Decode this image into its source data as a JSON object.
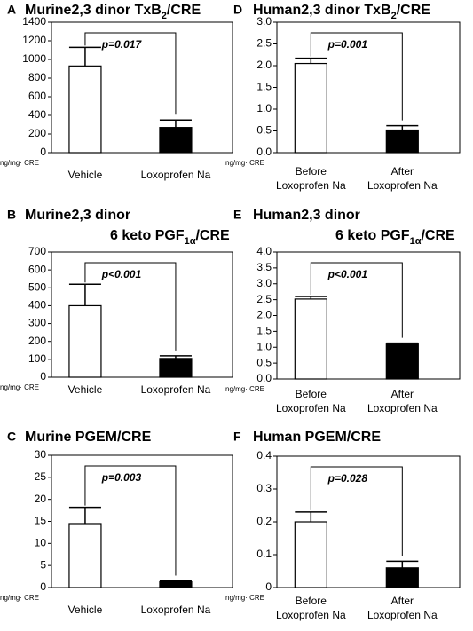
{
  "chart_data": [
    {
      "type": "bar",
      "panel": "A",
      "title": [
        [
          {
            "text": "Murine2,3 dinor TxB"
          },
          {
            "text": "2",
            "subscript": true
          },
          {
            "text": "/CRE"
          }
        ]
      ],
      "y_label": "ng/mg· CRE",
      "categories": [
        "Vehicle",
        "Loxoprofen Na"
      ],
      "values": [
        930,
        270
      ],
      "errors": [
        200,
        80
      ],
      "colors": [
        "#ffffff",
        "#000000"
      ],
      "annotation": "p=0.017",
      "ylim": [
        0,
        1400
      ],
      "yticks": [
        0,
        200,
        400,
        600,
        800,
        1000,
        1200,
        1400
      ]
    },
    {
      "type": "bar",
      "panel": "B",
      "title": [
        [
          {
            "text": "Murine2,3 dinor"
          }
        ],
        [
          {
            "text": "6 keto PGF"
          },
          {
            "text": "1α",
            "subscript": true
          },
          {
            "text": "/CRE"
          }
        ]
      ],
      "y_label": "ng/mg· CRE",
      "categories": [
        "Vehicle",
        "Loxoprofen Na"
      ],
      "values": [
        400,
        105
      ],
      "errors": [
        120,
        15
      ],
      "colors": [
        "#ffffff",
        "#000000"
      ],
      "annotation": "p<0.001",
      "ylim": [
        0,
        700
      ],
      "yticks": [
        0,
        100,
        200,
        300,
        400,
        500,
        600,
        700
      ]
    },
    {
      "type": "bar",
      "panel": "C",
      "title": [
        [
          {
            "text": "Murine PGEM/CRE"
          }
        ]
      ],
      "y_label": "ng/mg· CRE",
      "categories": [
        "Vehicle",
        "Loxoprofen Na"
      ],
      "values": [
        14.5,
        1.3
      ],
      "errors": [
        3.7,
        0.2
      ],
      "colors": [
        "#ffffff",
        "#000000"
      ],
      "annotation": "p=0.003",
      "ylim": [
        0,
        30
      ],
      "yticks": [
        0,
        5,
        10,
        15,
        20,
        25,
        30
      ]
    },
    {
      "type": "bar",
      "panel": "D",
      "title": [
        [
          {
            "text": "Human2,3 dinor TxB"
          },
          {
            "text": "2",
            "subscript": true
          },
          {
            "text": "/CRE"
          }
        ]
      ],
      "y_label": "ng/mg· CRE",
      "categories": [
        [
          "Before",
          "Loxoprofen Na"
        ],
        [
          "After",
          "Loxoprofen Na"
        ]
      ],
      "values": [
        2.05,
        0.52
      ],
      "errors": [
        0.12,
        0.1
      ],
      "colors": [
        "#ffffff",
        "#000000"
      ],
      "annotation": "p=0.001",
      "ylim": [
        0,
        3
      ],
      "yticks": [
        {
          "value": 0,
          "label": "0.0"
        },
        0.5,
        {
          "value": 1,
          "label": "1.0"
        },
        1.5,
        {
          "value": 2,
          "label": "2.0"
        },
        2.5,
        {
          "value": 3,
          "label": "3.0"
        }
      ]
    },
    {
      "type": "bar",
      "panel": "E",
      "title": [
        [
          {
            "text": "Human2,3 dinor"
          }
        ],
        [
          {
            "text": "6 keto PGF"
          },
          {
            "text": "1α",
            "subscript": true
          },
          {
            "text": "/CRE"
          }
        ]
      ],
      "y_label": "ng/mg· CRE",
      "categories": [
        [
          "Before",
          "Loxoprofen Na"
        ],
        [
          "After",
          "Loxoprofen Na"
        ]
      ],
      "values": [
        2.52,
        1.1
      ],
      "errors": [
        0.08,
        0.03
      ],
      "colors": [
        "#ffffff",
        "#000000"
      ],
      "annotation": "p<0.001",
      "ylim": [
        0,
        4
      ],
      "yticks": [
        {
          "value": 0,
          "label": "0.0"
        },
        0.5,
        {
          "value": 1,
          "label": "1.0"
        },
        1.5,
        {
          "value": 2,
          "label": "2.0"
        },
        2.5,
        {
          "value": 3,
          "label": "3.0"
        },
        3.5,
        {
          "value": 4,
          "label": "4.0"
        }
      ]
    },
    {
      "type": "bar",
      "panel": "F",
      "title": [
        [
          {
            "text": "Human PGEM/CRE"
          }
        ]
      ],
      "y_label": "ng/mg· CRE",
      "categories": [
        [
          "Before",
          "Loxoprofen Na"
        ],
        [
          "After",
          "Loxoprofen Na"
        ]
      ],
      "values": [
        0.2,
        0.06
      ],
      "errors": [
        0.03,
        0.02
      ],
      "colors": [
        "#ffffff",
        "#000000"
      ],
      "annotation": "p=0.028",
      "ylim": [
        0,
        0.4
      ],
      "yticks": [
        0,
        0.1,
        0.2,
        0.3,
        0.4
      ]
    }
  ]
}
